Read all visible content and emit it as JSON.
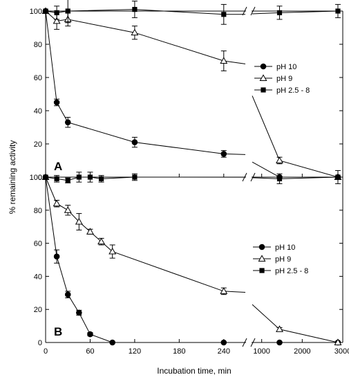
{
  "chart_data": [
    {
      "type": "line",
      "panel_label": "A",
      "ylabel": "% remaining activity",
      "xlabel": "",
      "ylim": [
        0,
        100
      ],
      "yticks": [
        0,
        20,
        40,
        60,
        80,
        100
      ],
      "x_break": {
        "left_range": [
          0,
          270
        ],
        "right_range": [
          750,
          3000
        ]
      },
      "xticks_left": [
        0,
        60,
        120,
        180,
        240
      ],
      "xticks_right": [
        1000,
        2000,
        3000
      ],
      "legend_position": "right",
      "series": [
        {
          "name": "pH 10",
          "marker": "filled-circle",
          "x": [
            0,
            15,
            30,
            120,
            240,
            1440,
            2880
          ],
          "y": [
            100,
            45,
            33,
            21,
            14,
            0,
            0
          ],
          "err": [
            0,
            2,
            3,
            3,
            2,
            0,
            0
          ]
        },
        {
          "name": "pH 9",
          "marker": "open-triangle",
          "x": [
            0,
            15,
            30,
            120,
            240,
            1440,
            2880
          ],
          "y": [
            100,
            94,
            95,
            87,
            70,
            10,
            0
          ],
          "err": [
            0,
            5,
            4,
            4,
            6,
            2,
            0
          ]
        },
        {
          "name": "pH 2.5 - 8",
          "marker": "filled-square",
          "x": [
            0,
            15,
            30,
            120,
            240,
            1440,
            2880
          ],
          "y": [
            100,
            99,
            100,
            101,
            98,
            99,
            100
          ],
          "err": [
            0,
            4,
            7,
            5,
            6,
            4,
            4
          ]
        }
      ]
    },
    {
      "type": "line",
      "panel_label": "B",
      "ylabel": "% remaining activity",
      "xlabel": "Incubation time, min",
      "ylim": [
        0,
        100
      ],
      "yticks": [
        0,
        20,
        40,
        60,
        80,
        100
      ],
      "x_break": {
        "left_range": [
          0,
          270
        ],
        "right_range": [
          750,
          3000
        ]
      },
      "xticks_left": [
        0,
        60,
        120,
        180,
        240
      ],
      "xticks_right": [
        1000,
        2000,
        3000
      ],
      "legend_position": "right",
      "series": [
        {
          "name": "pH 10",
          "marker": "filled-circle",
          "x": [
            0,
            15,
            30,
            45,
            60,
            90,
            240,
            1440,
            2880
          ],
          "y": [
            100,
            52,
            29,
            18,
            5,
            0,
            0,
            0,
            0
          ],
          "err": [
            0,
            4,
            2,
            1.5,
            1,
            0,
            0,
            0,
            0
          ]
        },
        {
          "name": "pH 9",
          "marker": "open-triangle",
          "x": [
            0,
            15,
            30,
            45,
            60,
            75,
            90,
            240,
            1440,
            2880
          ],
          "y": [
            100,
            84,
            80,
            73,
            67,
            61,
            55,
            31,
            8,
            0
          ],
          "err": [
            0,
            2,
            3,
            5,
            1.5,
            2,
            4,
            2,
            1,
            0
          ]
        },
        {
          "name": "pH 2.5 - 8",
          "marker": "filled-square",
          "x": [
            0,
            15,
            30,
            45,
            60,
            75,
            120,
            1440,
            2880
          ],
          "y": [
            100,
            99,
            98,
            100,
            100,
            99,
            100,
            99,
            100
          ],
          "err": [
            0,
            2,
            1.5,
            3,
            3,
            2,
            2,
            3,
            4
          ]
        }
      ]
    }
  ]
}
